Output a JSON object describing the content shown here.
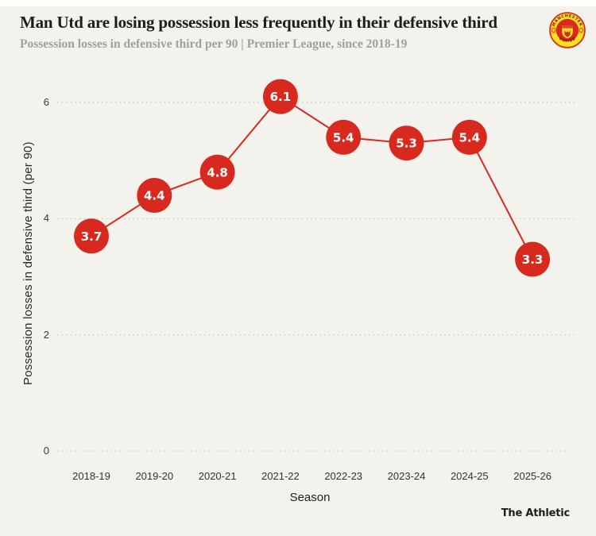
{
  "page": {
    "background": "#f3f2ed",
    "top_strip_color": "#fdfdfb"
  },
  "header": {
    "title": "Man Utd are losing possession less frequently in their defensive third",
    "subtitle": "Possession losses in defensive third  per 90 | Premier League, since 2018-19"
  },
  "crest": {
    "club": "Manchester United",
    "top_text": "MANCHESTER",
    "bottom_text": "UNITED",
    "red": "#da291c",
    "yellow": "#fbe122"
  },
  "chart_data": {
    "type": "line",
    "title": "Man Utd are losing possession less frequently in their defensive third",
    "subtitle": "Possession losses in defensive third  per 90 | Premier League, since 2018-19",
    "x": [
      "2018-19",
      "2019-20",
      "2020-21",
      "2021-22",
      "2022-23",
      "2023-24",
      "2024-25",
      "2025-26"
    ],
    "values": [
      3.7,
      4.4,
      4.8,
      6.1,
      5.4,
      5.3,
      5.4,
      3.3
    ],
    "xlabel": "Season",
    "ylabel": "Possession losses in defensive third (per 90)",
    "yticks": [
      0,
      2,
      4,
      6
    ],
    "ylim": [
      0,
      6.6
    ],
    "grid": "horizontal dotted lines at each y tick",
    "legend": "none",
    "marker_style": "large filled circle with white value label inside",
    "colors": {
      "series": "#d8291f",
      "marker": "#d8291f",
      "marker_text": "#ffffff",
      "grid": "#c7c6c0"
    }
  },
  "footer": {
    "brand": "The Athletic"
  }
}
